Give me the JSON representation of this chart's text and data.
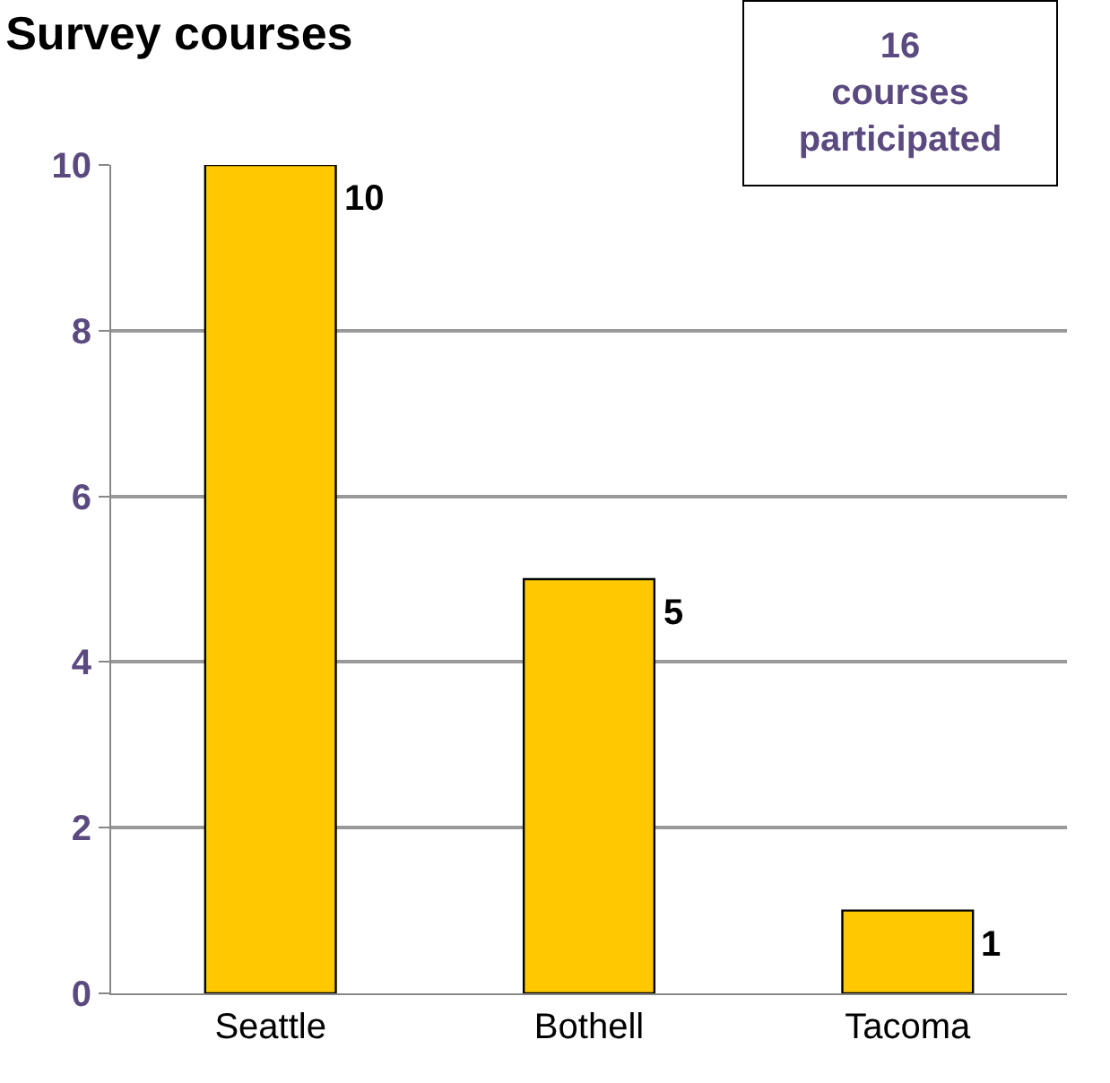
{
  "chart_data": {
    "type": "bar",
    "title": "Survey courses",
    "categories": [
      "Seattle",
      "Bothell",
      "Tacoma"
    ],
    "values": [
      10,
      5,
      1
    ],
    "color": "#ffc800",
    "ylim": [
      0,
      10
    ],
    "yticks": [
      0,
      2,
      4,
      6,
      8,
      10
    ],
    "grid": "y",
    "data_labels": true,
    "annotations": [
      "16 courses participated"
    ]
  }
}
